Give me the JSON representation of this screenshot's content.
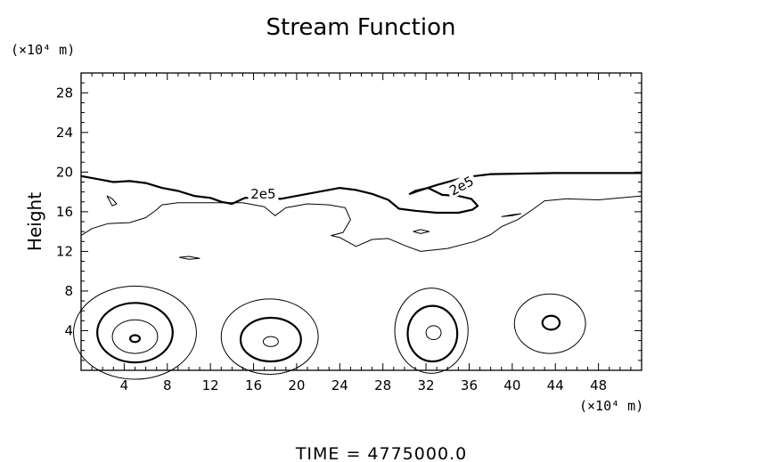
{
  "chart_data": {
    "type": "contour",
    "title": "Stream Function",
    "ylabel": "Height",
    "y_unit_label": "(×10⁴ m)",
    "x_unit_label": "(×10⁴ m)",
    "xlim": [
      0,
      52
    ],
    "ylim": [
      0,
      30
    ],
    "x_ticks": [
      4,
      8,
      12,
      16,
      20,
      24,
      28,
      32,
      36,
      40,
      44,
      48
    ],
    "y_ticks": [
      4,
      8,
      12,
      16,
      20,
      24,
      28
    ],
    "x_tick_labels": [
      "4",
      "8",
      "12",
      "16",
      "20",
      "24",
      "28",
      "32",
      "36",
      "40",
      "44",
      "48"
    ],
    "y_tick_labels": [
      "4",
      "8",
      "12",
      "16",
      "20",
      "24",
      "28"
    ],
    "contour_label": "2e5",
    "footer": "TIME = 4775000.0",
    "contours": [
      {
        "kind": "thick",
        "label": "2e5",
        "label_at": [
          16.5,
          17.6
        ],
        "points": [
          [
            0,
            19.6
          ],
          [
            1.5,
            19.3
          ],
          [
            3,
            19.0
          ],
          [
            4.5,
            19.1
          ],
          [
            6,
            18.9
          ],
          [
            7.5,
            18.4
          ],
          [
            9,
            18.1
          ],
          [
            10.5,
            17.6
          ],
          [
            12,
            17.4
          ],
          [
            13,
            17.0
          ],
          [
            14,
            16.8
          ],
          [
            15.2,
            17.4
          ],
          [
            17,
            17.4
          ],
          [
            18.5,
            17.3
          ],
          [
            20,
            17.6
          ],
          [
            22,
            18.0
          ],
          [
            24,
            18.4
          ],
          [
            25.5,
            18.2
          ],
          [
            27,
            17.8
          ],
          [
            28.5,
            17.2
          ],
          [
            29.5,
            16.3
          ],
          [
            31,
            16.1
          ],
          [
            33,
            15.9
          ],
          [
            35,
            15.9
          ],
          [
            36.3,
            16.2
          ],
          [
            36.8,
            16.6
          ],
          [
            36.2,
            17.3
          ],
          [
            35,
            17.6
          ],
          [
            33.5,
            17.7
          ],
          [
            32.2,
            18.4
          ],
          [
            31,
            18.1
          ],
          [
            30.5,
            17.8
          ],
          [
            31,
            18.0
          ],
          [
            33,
            18.7
          ],
          [
            35,
            19.3
          ],
          [
            36.5,
            19.6
          ],
          [
            38,
            19.8
          ],
          [
            44,
            19.9
          ],
          [
            52,
            19.9
          ]
        ]
      },
      {
        "kind": "thin",
        "points": [
          [
            0,
            13.6
          ],
          [
            1,
            14.3
          ],
          [
            2.5,
            14.8
          ],
          [
            4.5,
            14.9
          ],
          [
            6,
            15.4
          ],
          [
            7,
            16.2
          ],
          [
            7.5,
            16.7
          ],
          [
            9,
            16.9
          ],
          [
            12,
            16.9
          ],
          [
            15,
            16.9
          ],
          [
            17,
            16.5
          ],
          [
            18,
            15.6
          ],
          [
            19,
            16.4
          ],
          [
            21,
            16.8
          ],
          [
            23,
            16.7
          ],
          [
            24.5,
            16.4
          ],
          [
            25,
            15.2
          ],
          [
            24.3,
            13.9
          ],
          [
            23.2,
            13.6
          ],
          [
            24,
            13.4
          ],
          [
            25.5,
            12.5
          ],
          [
            27,
            13.2
          ],
          [
            28.5,
            13.3
          ],
          [
            30,
            12.6
          ],
          [
            31.5,
            12.0
          ],
          [
            34,
            12.3
          ],
          [
            36.5,
            13.0
          ],
          [
            38,
            13.7
          ],
          [
            39,
            14.5
          ],
          [
            40.5,
            15.2
          ],
          [
            42,
            16.3
          ],
          [
            43,
            17.1
          ],
          [
            45,
            17.3
          ],
          [
            48,
            17.2
          ],
          [
            52,
            17.6
          ]
        ]
      },
      {
        "kind": "thin",
        "points": [
          [
            2.4,
            17.6
          ],
          [
            2.9,
            16.6
          ],
          [
            3.3,
            16.8
          ],
          [
            2.9,
            17.3
          ],
          [
            2.4,
            17.6
          ]
        ]
      },
      {
        "kind": "thin",
        "points": [
          [
            9.1,
            11.4
          ],
          [
            10,
            11.2
          ],
          [
            11,
            11.3
          ],
          [
            10,
            11.5
          ],
          [
            9.1,
            11.4
          ]
        ]
      },
      {
        "kind": "thin",
        "points": [
          [
            30.8,
            14.0
          ],
          [
            31.5,
            13.8
          ],
          [
            32.3,
            14.0
          ],
          [
            31.5,
            14.2
          ],
          [
            30.8,
            14.0
          ]
        ]
      },
      {
        "kind": "thin",
        "points": [
          [
            39,
            15.5
          ],
          [
            40,
            15.7
          ],
          [
            40.8,
            15.8
          ],
          [
            40,
            15.6
          ],
          [
            39,
            15.5
          ]
        ]
      },
      {
        "kind": "thin",
        "ellipse": [
          5,
          3.8,
          5.7,
          4.7
        ]
      },
      {
        "kind": "thick",
        "ellipse": [
          5,
          3.8,
          3.5,
          3.0
        ]
      },
      {
        "kind": "thin",
        "ellipse": [
          5,
          3.4,
          2.1,
          1.7
        ]
      },
      {
        "kind": "thick",
        "ellipse": [
          5,
          3.2,
          0.45,
          0.35
        ]
      },
      {
        "kind": "thin",
        "ellipse": [
          17.5,
          3.4,
          4.5,
          3.8
        ]
      },
      {
        "kind": "thick",
        "ellipse": [
          17.6,
          3.1,
          2.8,
          2.2
        ]
      },
      {
        "kind": "thin",
        "ellipse": [
          17.6,
          2.9,
          0.7,
          0.5
        ]
      },
      {
        "kind": "thin",
        "ellipse": [
          32.5,
          4.0,
          3.4,
          4.3
        ]
      },
      {
        "kind": "thick",
        "ellipse": [
          32.6,
          3.7,
          2.3,
          2.8
        ]
      },
      {
        "kind": "thin",
        "ellipse": [
          32.7,
          3.8,
          0.7,
          0.7
        ]
      },
      {
        "kind": "thin",
        "ellipse": [
          43.5,
          4.7,
          3.3,
          3.0
        ]
      },
      {
        "kind": "thick",
        "ellipse": [
          43.6,
          4.8,
          0.8,
          0.7
        ]
      }
    ]
  }
}
